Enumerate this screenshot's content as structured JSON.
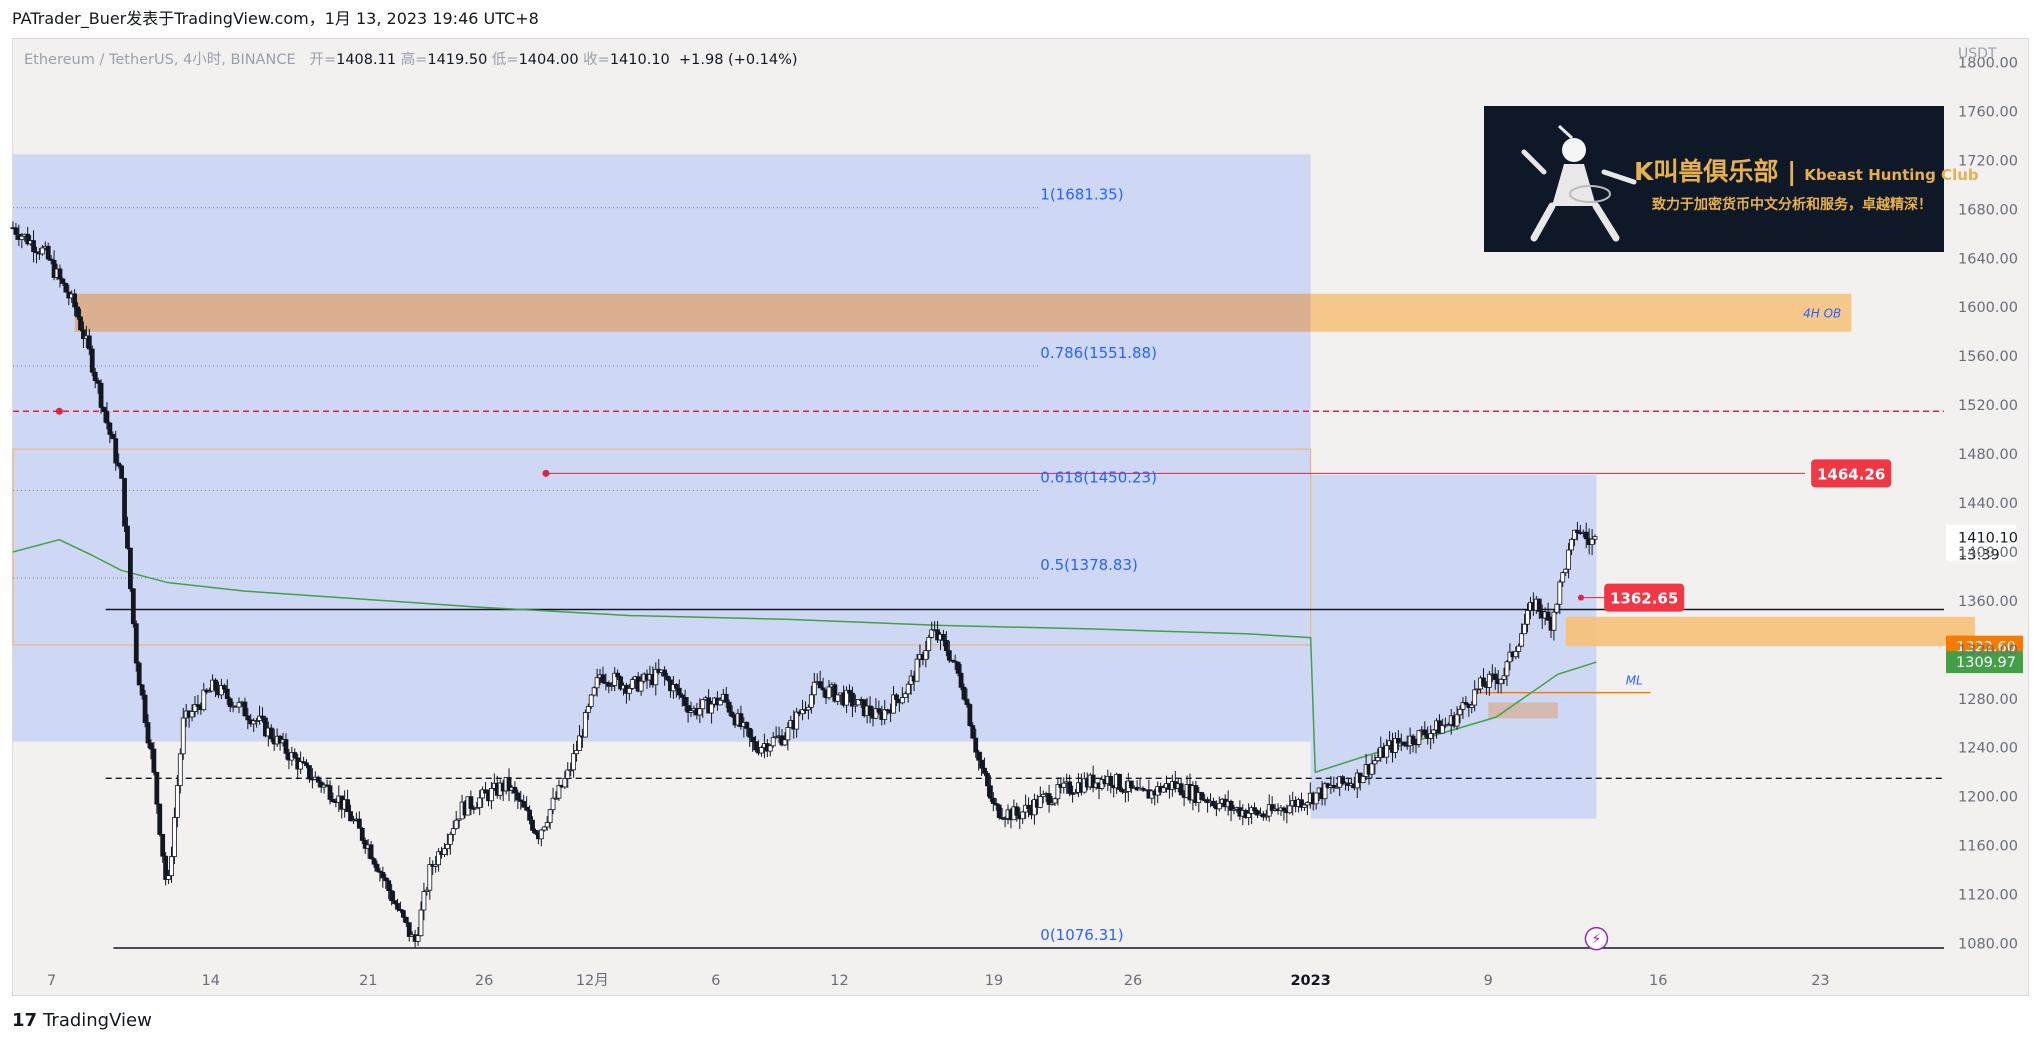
{
  "header": {
    "publisher": "PATrader_Buer发表于TradingView.com，1月 13, 2023 19:46 UTC+8"
  },
  "legend": {
    "symbol": "Ethereum / TetherUS, 4小时, BINANCE",
    "open_label": "开=",
    "open": "1408.11",
    "high_label": "高=",
    "high": "1419.50",
    "low_label": "低=",
    "low": "1404.00",
    "close_label": "收=",
    "close": "1410.10",
    "change": "+1.98 (+0.14%)"
  },
  "banner": {
    "title": "K叫兽俱乐部 |",
    "title_en": "Kbeast Hunting Club",
    "subtitle": "致力于加密货币中文分析和服务，卓越精深！"
  },
  "footer": {
    "brand": "TradingView",
    "brand_mark": "17"
  },
  "colors": {
    "background": "#f2f1f0",
    "fib_zone": "#c8d3f5",
    "order_block": "#f7c178",
    "order_block_dark": "#d6ad90",
    "moving_average": "#43a047",
    "resistance": "#d7264a",
    "candle": "#131722",
    "fib_text": "#2962ff"
  },
  "chart_data": {
    "type": "candlestick",
    "symbol": "ETH/USDT",
    "interval": "4小时",
    "currency": "USDT",
    "ylim": [
      1060,
      1820
    ],
    "y_ticks": [
      1800,
      1760,
      1720,
      1680,
      1640,
      1600,
      1560,
      1520,
      1480,
      1440,
      1400,
      1360,
      1320,
      1280,
      1240,
      1200,
      1160,
      1120,
      1080
    ],
    "x_tick_labels": [
      "7",
      "14",
      "21",
      "26",
      "12月",
      "6",
      "12",
      "19",
      "26",
      "2023",
      "9",
      "16",
      "23"
    ],
    "price_path": [
      [
        0,
        1665
      ],
      [
        2,
        1645
      ],
      [
        4,
        1600
      ],
      [
        5,
        1560
      ],
      [
        7,
        1460
      ],
      [
        8,
        1310
      ],
      [
        9,
        1230
      ],
      [
        10,
        1120
      ],
      [
        11,
        1260
      ],
      [
        13,
        1290
      ],
      [
        16,
        1260
      ],
      [
        19,
        1220
      ],
      [
        21,
        1200
      ],
      [
        23,
        1160
      ],
      [
        25,
        1105
      ],
      [
        26,
        1080
      ],
      [
        27,
        1140
      ],
      [
        29,
        1190
      ],
      [
        32,
        1210
      ],
      [
        34,
        1170
      ],
      [
        36,
        1220
      ],
      [
        38,
        1300
      ],
      [
        40,
        1290
      ],
      [
        42,
        1300
      ],
      [
        44,
        1270
      ],
      [
        46,
        1280
      ],
      [
        48,
        1240
      ],
      [
        50,
        1250
      ],
      [
        52,
        1290
      ],
      [
        54,
        1280
      ],
      [
        56,
        1265
      ],
      [
        58,
        1290
      ],
      [
        59.5,
        1335
      ],
      [
        60.5,
        1320
      ],
      [
        61.5,
        1290
      ],
      [
        62.5,
        1230
      ],
      [
        63.5,
        1190
      ],
      [
        65,
        1185
      ],
      [
        67,
        1200
      ],
      [
        69,
        1210
      ],
      [
        71,
        1215
      ],
      [
        73,
        1200
      ],
      [
        75,
        1210
      ],
      [
        77,
        1200
      ],
      [
        79,
        1190
      ],
      [
        81,
        1185
      ],
      [
        83,
        1195
      ],
      [
        85,
        1205
      ],
      [
        87,
        1215
      ],
      [
        89,
        1240
      ],
      [
        91,
        1250
      ],
      [
        93,
        1260
      ],
      [
        95,
        1290
      ],
      [
        96.5,
        1300
      ],
      [
        97.5,
        1330
      ],
      [
        98.5,
        1360
      ],
      [
        99.5,
        1340
      ],
      [
        100.5,
        1390
      ],
      [
        101.3,
        1420
      ],
      [
        102,
        1408
      ],
      [
        102.5,
        1410.1
      ]
    ],
    "last_price": 1410.1,
    "countdown": "13:39",
    "ma_path": [
      [
        0,
        1400
      ],
      [
        3,
        1410
      ],
      [
        5,
        1398
      ],
      [
        7,
        1385
      ],
      [
        10,
        1375
      ],
      [
        15,
        1368
      ],
      [
        22,
        1362
      ],
      [
        30,
        1355
      ],
      [
        40,
        1348
      ],
      [
        50,
        1345
      ],
      [
        60,
        1340
      ],
      [
        70,
        1337
      ],
      [
        80,
        1333
      ],
      [
        84,
        1330
      ],
      [
        84.3,
        1220
      ],
      [
        88,
        1235
      ],
      [
        92,
        1250
      ],
      [
        96,
        1265
      ],
      [
        100,
        1300
      ],
      [
        102.5,
        1310
      ]
    ],
    "fibonacci": {
      "levels": [
        {
          "ratio": "1",
          "price": 1681.35,
          "label": "1(1681.35)"
        },
        {
          "ratio": "0.786",
          "price": 1551.88,
          "label": "0.786(1551.88)"
        },
        {
          "ratio": "0.618",
          "price": 1450.23,
          "label": "0.618(1450.23)"
        },
        {
          "ratio": "0.5",
          "price": 1378.83,
          "label": "0.5(1378.83)"
        },
        {
          "ratio": "0",
          "price": 1076.31,
          "label": "0(1076.31)"
        }
      ]
    },
    "zones": [
      {
        "name": "fib-zone-main",
        "from": 0,
        "to": 84,
        "low": 1245,
        "high": 1725
      },
      {
        "name": "fib-zone-recent",
        "from": 84,
        "to": 102.5,
        "low": 1182,
        "high": 1463
      },
      {
        "name": "order-block-4h",
        "from": 4,
        "to": 119,
        "low": 1580,
        "high": 1611,
        "label": "4H OB"
      },
      {
        "name": "demand-zone",
        "from": 100.5,
        "to": 127,
        "low": 1323,
        "high": 1347
      },
      {
        "name": "ml-block",
        "from": 95.5,
        "to": 100,
        "low": 1264,
        "high": 1277
      }
    ],
    "lines": [
      {
        "name": "resistance-dashed",
        "price": 1515
      },
      {
        "name": "resistance-1464",
        "price": 1464.26,
        "label": "1464.26"
      },
      {
        "name": "level-1362",
        "price": 1362.65,
        "label": "1362.65"
      },
      {
        "name": "range-high",
        "price": 1353
      },
      {
        "name": "range-mid-dashed",
        "price": 1215
      },
      {
        "name": "ml-line",
        "price": 1285,
        "label": "ML"
      }
    ],
    "price_labels": [
      {
        "value": "1322.60",
        "color": "#f57c00"
      },
      {
        "value": "1309.97",
        "color": "#43a047"
      }
    ]
  }
}
